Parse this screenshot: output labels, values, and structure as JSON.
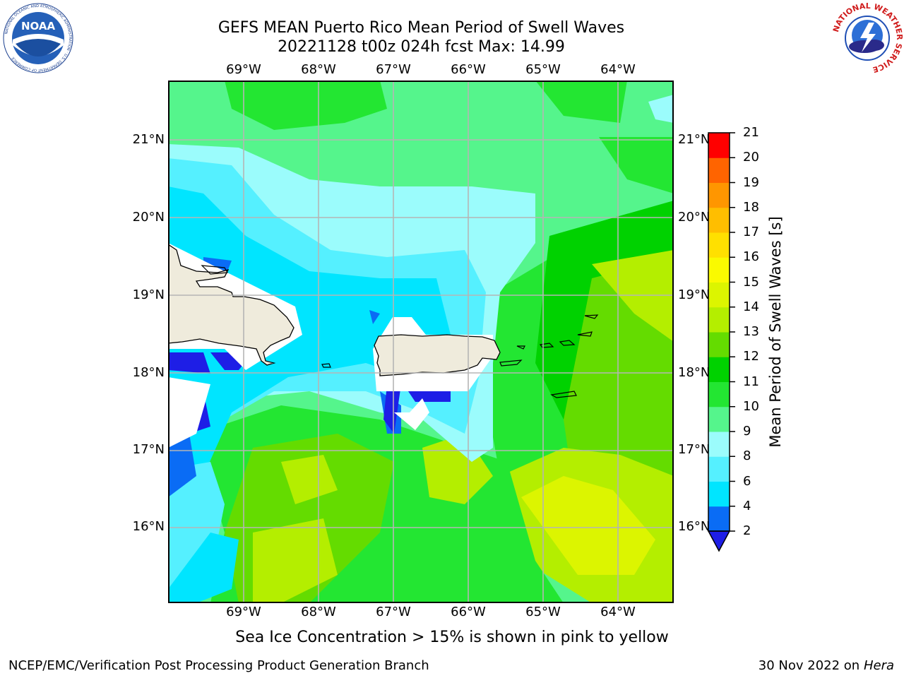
{
  "title": {
    "line1": "GEFS MEAN Puerto Rico Mean Period of Swell Waves",
    "line2": "20221128 t00z 024h fcst   Max: 14.99"
  },
  "map": {
    "lon_labels": [
      "69°W",
      "68°W",
      "67°W",
      "66°W",
      "65°W",
      "64°W"
    ],
    "lat_labels": [
      "21°N",
      "20°N",
      "19°N",
      "18°N",
      "17°N",
      "16°N"
    ],
    "lon_range": [
      -70.0,
      -63.3
    ],
    "lat_range": [
      15.0,
      21.75
    ],
    "land_color": "#efebdc",
    "grid_color": "#b5b5b5"
  },
  "colorbar": {
    "label": "Mean Period of Swell Waves [s]",
    "ticks": [
      "2",
      "4",
      "6",
      "8",
      "9",
      "10",
      "11",
      "12",
      "13",
      "14",
      "15",
      "16",
      "17",
      "18",
      "19",
      "20",
      "21"
    ],
    "colors": [
      "#0a6cf5",
      "#00e5ff",
      "#55f0ff",
      "#9bfcfc",
      "#55f58c",
      "#23e632",
      "#00d200",
      "#64dc00",
      "#b4ee00",
      "#dcf500",
      "#fafa00",
      "#ffe000",
      "#ffbe00",
      "#ff9600",
      "#ff6400",
      "#ff3200",
      "#ff0000"
    ],
    "under_color": "#1e1ee6"
  },
  "caption": "Sea Ice Concentration > 15% is shown in pink to yellow",
  "footer": {
    "left": "NCEP/EMC/Verification Post Processing Product Generation Branch",
    "right_date": "30 Nov 2022 on",
    "right_host": "Hera"
  },
  "logos": {
    "noaa_text": "NOAA",
    "noaa_ring": "NATIONAL OCEANIC AND ATMOSPHERIC ADMINISTRATION · U.S. DEPARTMENT OF COMMERCE",
    "nws_ring": "NATIONAL WEATHER SERVICE"
  }
}
